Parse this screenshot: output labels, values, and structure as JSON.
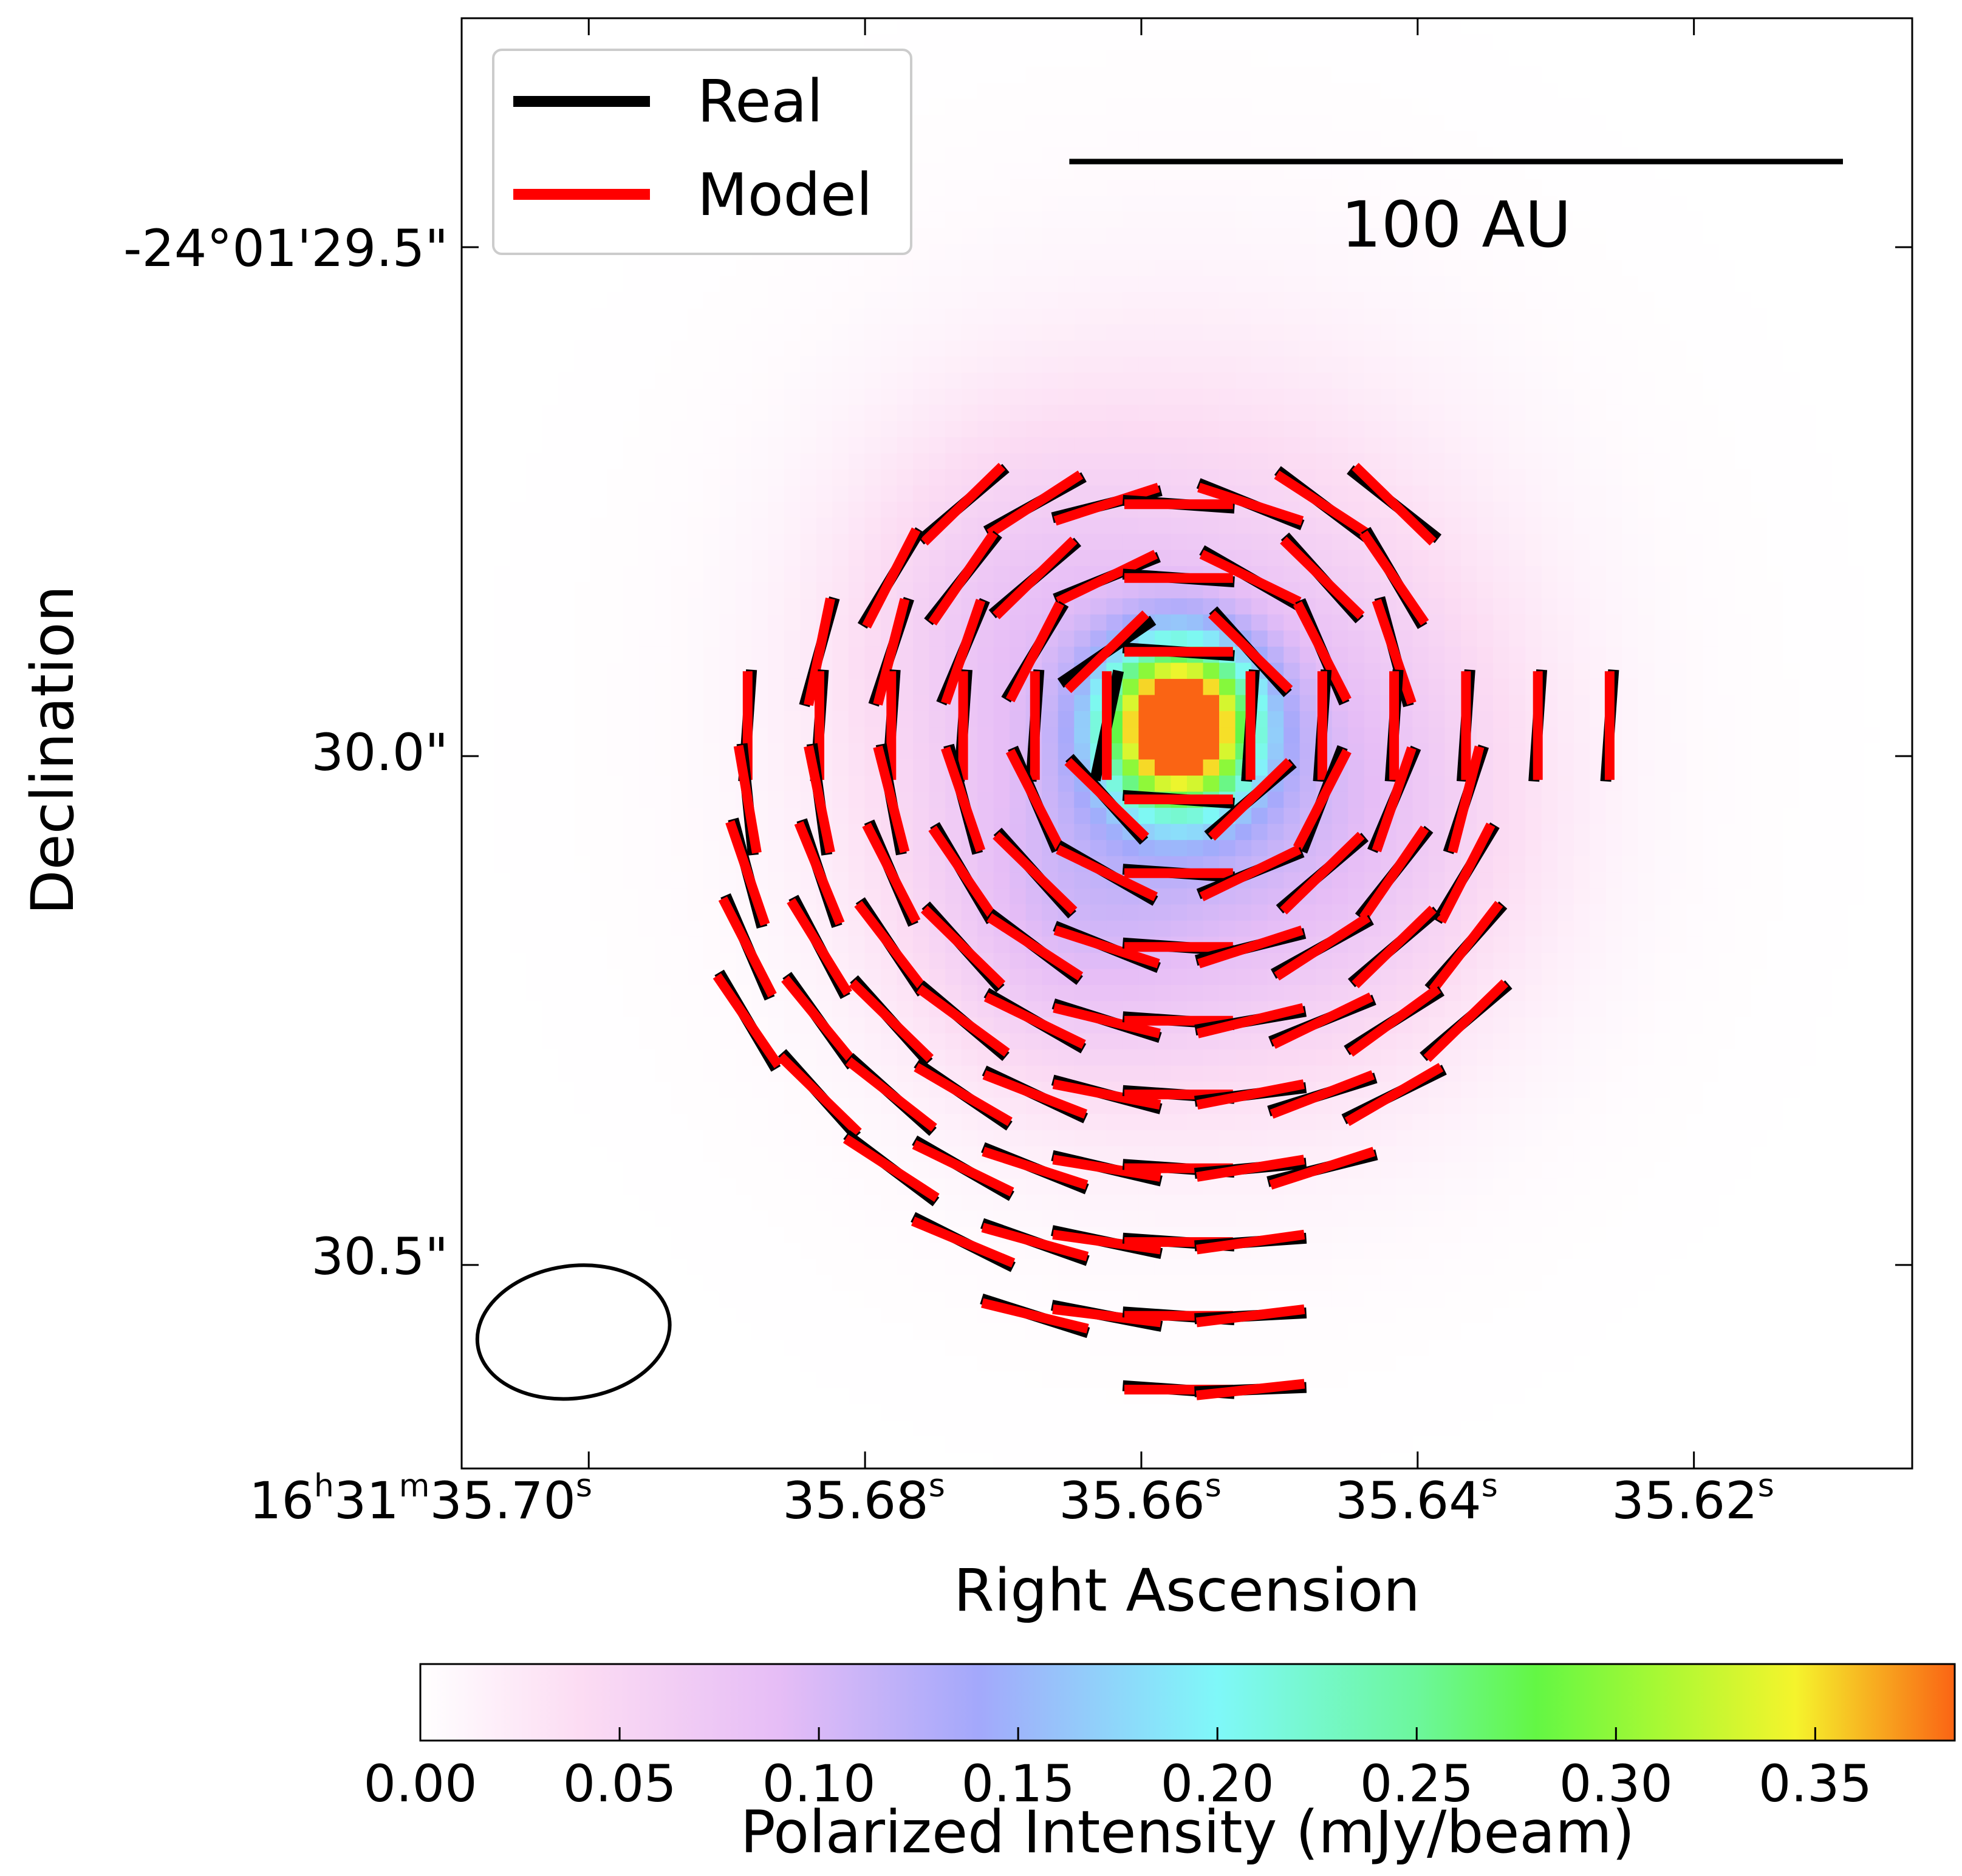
{
  "chart_data": {
    "type": "heatmap",
    "xlabel": "Right Ascension",
    "ylabel": "Declination",
    "x_tick_labels": [
      {
        "h": "16",
        "m": "31",
        "s": "35.70",
        "value": 35.7
      },
      {
        "s": "35.68",
        "value": 35.68
      },
      {
        "s": "35.66",
        "value": 35.66
      },
      {
        "s": "35.64",
        "value": 35.64
      },
      {
        "s": "35.62",
        "value": 35.62
      }
    ],
    "y_tick_labels": [
      {
        "label": "-24°01'29.5\"",
        "value": 29.5
      },
      {
        "label": "30.0\"",
        "value": 30.0
      },
      {
        "label": "30.5\"",
        "value": 30.5
      }
    ],
    "ra_range_seconds": [
      35.7092,
      35.6042
    ],
    "dec_range_arcsec": [
      29.275,
      30.7
    ],
    "legend": {
      "placement": "upper-left",
      "entries": [
        {
          "label": "Real",
          "color": "#000000"
        },
        {
          "label": "Model",
          "color": "#ff0000"
        }
      ]
    },
    "scalebar": {
      "label": "100 AU",
      "length_arcsec": 0.76
    },
    "beam": {
      "center_ra_s": 35.7011,
      "center_dec_arcsec": 30.566,
      "major_arcsec": 0.19,
      "minor_arcsec": 0.13
    },
    "colorbar": {
      "label": "Polarized Intensity (mJy/beam)",
      "range": [
        0,
        0.385
      ],
      "tick_labels": [
        "0.00",
        "0.05",
        "0.10",
        "0.15",
        "0.20",
        "0.25",
        "0.30",
        "0.35"
      ],
      "tick_values": [
        0,
        0.05,
        0.1,
        0.15,
        0.2,
        0.25,
        0.3,
        0.35
      ],
      "colormap_stops": [
        {
          "value": 0.0,
          "color": "#ffffff"
        },
        {
          "value": 0.04,
          "color": "#fcdcf3"
        },
        {
          "value": 0.09,
          "color": "#e6bdf6"
        },
        {
          "value": 0.14,
          "color": "#a3a8fb"
        },
        {
          "value": 0.2,
          "color": "#7ff8f9"
        },
        {
          "value": 0.25,
          "color": "#6cf79c"
        },
        {
          "value": 0.28,
          "color": "#63f744"
        },
        {
          "value": 0.31,
          "color": "#a6f934"
        },
        {
          "value": 0.345,
          "color": "#f5f42c"
        },
        {
          "value": 0.385,
          "color": "#fa6414"
        }
      ]
    },
    "intensity_components": [
      {
        "ra_s": 35.6573,
        "dec_arcsec": 29.97,
        "peak": 0.385,
        "sigma_arcsec": 0.055
      },
      {
        "ra_s": 35.6573,
        "dec_arcsec": 29.97,
        "peak": 0.075,
        "sigma_arcsec": 0.24
      },
      {
        "ra_s": 35.648,
        "dec_arcsec": 30.07,
        "peak": 0.045,
        "sigma_arcsec": 0.16
      },
      {
        "ra_s": 35.666,
        "dec_arcsec": 30.16,
        "peak": 0.045,
        "sigma_arcsec": 0.11
      },
      {
        "ra_s": 35.67,
        "dec_arcsec": 29.86,
        "peak": 0.03,
        "sigma_arcsec": 0.12
      }
    ],
    "vector_center": {
      "ra_s": 35.6573,
      "dec_arcsec": 29.97
    },
    "vector_grid": {
      "ra_step_s": 0.0052,
      "dec_step_arcsec": 0.0725
    },
    "vectors": [
      [
        -3,
        -3
      ],
      [
        -2,
        -3
      ],
      [
        -1,
        -3
      ],
      [
        0,
        -3
      ],
      [
        1,
        -3
      ],
      [
        2,
        -3
      ],
      [
        3,
        -3
      ],
      [
        -4,
        -2
      ],
      [
        -3,
        -2
      ],
      [
        -2,
        -2
      ],
      [
        -1,
        -2
      ],
      [
        0,
        -2
      ],
      [
        1,
        -2
      ],
      [
        2,
        -2
      ],
      [
        3,
        -2
      ],
      [
        -5,
        -1
      ],
      [
        -4,
        -1
      ],
      [
        -3,
        -1
      ],
      [
        -2,
        -1
      ],
      [
        -1,
        -1
      ],
      [
        0,
        -1
      ],
      [
        1,
        -1
      ],
      [
        2,
        -1
      ],
      [
        3,
        -1
      ],
      [
        -6,
        0
      ],
      [
        -5,
        0
      ],
      [
        -4,
        0
      ],
      [
        -3,
        0
      ],
      [
        -2,
        0
      ],
      [
        -1,
        0
      ],
      [
        0,
        0
      ],
      [
        1,
        0
      ],
      [
        2,
        0
      ],
      [
        3,
        0
      ],
      [
        4,
        0
      ],
      [
        5,
        0
      ],
      [
        6,
        0
      ],
      [
        -6,
        1
      ],
      [
        -5,
        1
      ],
      [
        -4,
        1
      ],
      [
        -3,
        1
      ],
      [
        -2,
        1
      ],
      [
        -1,
        1
      ],
      [
        0,
        1
      ],
      [
        1,
        1
      ],
      [
        2,
        1
      ],
      [
        3,
        1
      ],
      [
        4,
        1
      ],
      [
        -6,
        2
      ],
      [
        -5,
        2
      ],
      [
        -4,
        2
      ],
      [
        -3,
        2
      ],
      [
        -2,
        2
      ],
      [
        -1,
        2
      ],
      [
        0,
        2
      ],
      [
        1,
        2
      ],
      [
        2,
        2
      ],
      [
        3,
        2
      ],
      [
        4,
        2
      ],
      [
        -6,
        3
      ],
      [
        -5,
        3
      ],
      [
        -4,
        3
      ],
      [
        -3,
        3
      ],
      [
        -2,
        3
      ],
      [
        -1,
        3
      ],
      [
        0,
        3
      ],
      [
        1,
        3
      ],
      [
        2,
        3
      ],
      [
        3,
        3
      ],
      [
        4,
        3
      ],
      [
        -6,
        4
      ],
      [
        -5,
        4
      ],
      [
        -4,
        4
      ],
      [
        -3,
        4
      ],
      [
        -2,
        4
      ],
      [
        -1,
        4
      ],
      [
        0,
        4
      ],
      [
        1,
        4
      ],
      [
        2,
        4
      ],
      [
        3,
        4
      ],
      [
        4,
        4
      ],
      [
        -5,
        5
      ],
      [
        -4,
        5
      ],
      [
        -3,
        5
      ],
      [
        -2,
        5
      ],
      [
        -1,
        5
      ],
      [
        0,
        5
      ],
      [
        1,
        5
      ],
      [
        2,
        5
      ],
      [
        3,
        5
      ],
      [
        -4,
        6
      ],
      [
        -3,
        6
      ],
      [
        -2,
        6
      ],
      [
        -1,
        6
      ],
      [
        0,
        6
      ],
      [
        1,
        6
      ],
      [
        2,
        6
      ],
      [
        -3,
        7
      ],
      [
        -2,
        7
      ],
      [
        -1,
        7
      ],
      [
        0,
        7
      ],
      [
        1,
        7
      ],
      [
        -2,
        8
      ],
      [
        -1,
        8
      ],
      [
        0,
        8
      ],
      [
        1,
        8
      ],
      [
        0,
        9
      ],
      [
        1,
        9
      ]
    ],
    "vector_half_length_arcsec": 0.022,
    "real_angle_offsets_deg": {
      "-1,0": 12,
      "-1,-1": 10,
      "2,1": -6,
      "3,-3": -6
    }
  }
}
